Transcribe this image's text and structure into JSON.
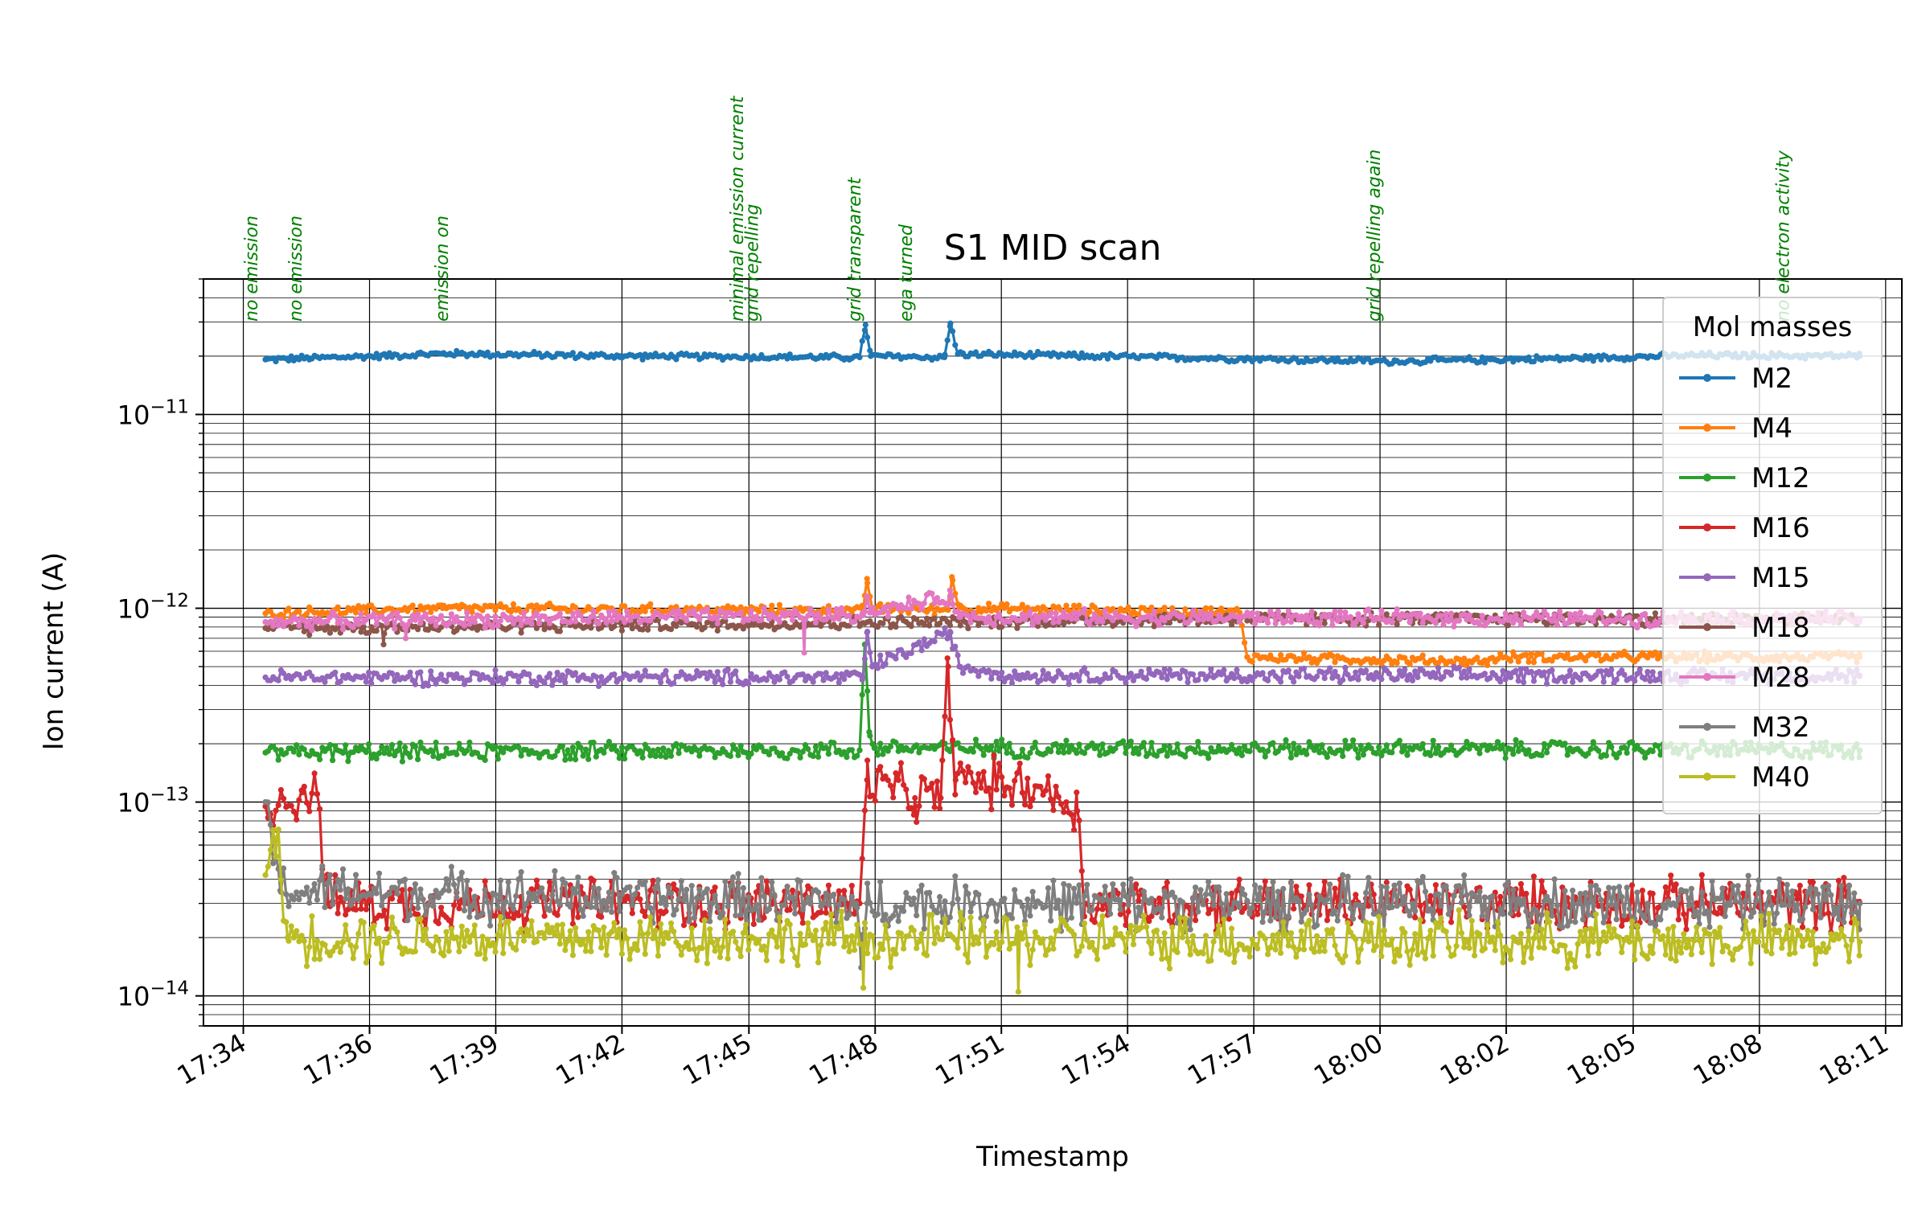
{
  "chart_data": {
    "type": "line",
    "title": "S1 MID scan",
    "xlabel": "Timestamp",
    "ylabel": "Ion current (A)",
    "yscale": "log",
    "ylim": [
      7e-15,
      5e-11
    ],
    "xlim": [
      "17:33:06",
      "18:11:27"
    ],
    "grid": "on (major and minor)",
    "legend": {
      "title": "Mol masses",
      "placement": "right (upper)"
    },
    "x_ticks": [
      {
        "t": "17:34:00",
        "label": "17:34"
      },
      {
        "t": "17:36:51",
        "label": "17:36"
      },
      {
        "t": "17:39:42",
        "label": "17:39"
      },
      {
        "t": "17:42:33",
        "label": "17:42"
      },
      {
        "t": "17:45:25",
        "label": "17:45"
      },
      {
        "t": "17:48:16",
        "label": "17:48"
      },
      {
        "t": "17:51:07",
        "label": "17:51"
      },
      {
        "t": "17:53:58",
        "label": "17:54"
      },
      {
        "t": "17:56:49",
        "label": "17:57"
      },
      {
        "t": "17:59:40",
        "label": "18:00"
      },
      {
        "t": "18:02:31",
        "label": "18:02"
      },
      {
        "t": "18:05:23",
        "label": "18:05"
      },
      {
        "t": "18:08:14",
        "label": "18:08"
      },
      {
        "t": "18:11:05",
        "label": "18:11"
      }
    ],
    "y_ticks": [
      {
        "value": 1e-14,
        "label_base": "10",
        "label_exp": "−14"
      },
      {
        "value": 1e-13,
        "label_base": "10",
        "label_exp": "−13"
      },
      {
        "value": 1e-12,
        "label_base": "10",
        "label_exp": "−12"
      },
      {
        "value": 1e-11,
        "label_base": "10",
        "label_exp": "−11"
      }
    ],
    "annotations": [
      {
        "t": "17:34:19",
        "text": "no emission"
      },
      {
        "t": "17:35:19",
        "text": "no emission"
      },
      {
        "t": "17:38:37",
        "text": "emission on"
      },
      {
        "t": "17:45:17",
        "text": "minimal emission current"
      },
      {
        "t": "17:45:37",
        "text": "grid repelling"
      },
      {
        "t": "17:47:56",
        "text": "grid transparent"
      },
      {
        "t": "17:49:06",
        "text": "ega turned"
      },
      {
        "t": "17:59:40",
        "text": "grid repelling again"
      },
      {
        "t": "18:08:54",
        "text": "no electron activity"
      }
    ],
    "series": [
      {
        "name": "M2",
        "color": "#1f77b4",
        "base": 2e-11,
        "noise": 0.012,
        "points": [
          [
            "17:34:30",
            1.92e-11
          ],
          [
            "17:38:40",
            2.06e-11
          ],
          [
            "17:42:30",
            2e-11
          ],
          [
            "17:47:55",
            1.97e-11
          ],
          [
            "17:48:03",
            2.9e-11
          ],
          [
            "17:48:10",
            2e-11
          ],
          [
            "17:49:50",
            1.97e-11
          ],
          [
            "17:49:58",
            2.95e-11
          ],
          [
            "17:50:08",
            2.05e-11
          ],
          [
            "17:56:00",
            1.95e-11
          ],
          [
            "18:00:00",
            1.88e-11
          ],
          [
            "18:04:00",
            1.95e-11
          ],
          [
            "18:07:00",
            2.02e-11
          ],
          [
            "18:10:30",
            2e-11
          ]
        ],
        "features": []
      },
      {
        "name": "M4",
        "color": "#ff7f0e",
        "base": 9.8e-13,
        "noise": 0.02,
        "points": [
          [
            "17:34:30",
            9.4e-13
          ],
          [
            "17:38:30",
            1e-12
          ],
          [
            "17:48:00",
            9.7e-13
          ],
          [
            "17:48:05",
            1.42e-12
          ],
          [
            "17:48:12",
            1e-12
          ],
          [
            "17:49:55",
            9.8e-13
          ],
          [
            "17:50:00",
            1.45e-12
          ],
          [
            "17:50:10",
            1e-12
          ],
          [
            "17:56:30",
            9.5e-13
          ],
          [
            "17:56:40",
            5.6e-13
          ],
          [
            "18:02:00",
            5.3e-13
          ],
          [
            "18:02:30",
            5.6e-13
          ],
          [
            "18:10:30",
            5.6e-13
          ]
        ],
        "features": []
      },
      {
        "name": "M12",
        "color": "#2ca02c",
        "base": 1.85e-13,
        "noise": 0.035,
        "points": [
          [
            "17:34:30",
            1.8e-13
          ],
          [
            "17:47:55",
            1.85e-13
          ],
          [
            "17:48:02",
            6.5e-13
          ],
          [
            "17:48:08",
            2.3e-13
          ],
          [
            "17:48:15",
            1.9e-13
          ],
          [
            "18:10:30",
            1.85e-13
          ]
        ],
        "features": []
      },
      {
        "name": "M16",
        "color": "#d62728",
        "base": 3e-14,
        "noise": 0.1,
        "points": [
          [
            "17:34:30",
            9.5e-14
          ],
          [
            "17:35:20",
            1.12e-13
          ],
          [
            "17:35:40",
            1.1e-13
          ],
          [
            "17:35:55",
            3e-14
          ],
          [
            "17:47:55",
            3e-14
          ],
          [
            "17:48:05",
            1.3e-13
          ],
          [
            "17:49:10",
            1.05e-13
          ],
          [
            "17:49:45",
            1.05e-13
          ],
          [
            "17:49:55",
            5e-13
          ],
          [
            "17:50:05",
            1.3e-13
          ],
          [
            "17:52:00",
            1.2e-13
          ],
          [
            "17:52:50",
            9e-14
          ],
          [
            "17:53:00",
            3e-14
          ],
          [
            "18:10:30",
            3e-14
          ]
        ],
        "features": []
      },
      {
        "name": "M15",
        "color": "#9467bd",
        "base": 4.5e-13,
        "noise": 0.03,
        "points": [
          [
            "17:34:30",
            4.4e-13
          ],
          [
            "17:48:00",
            4.4e-13
          ],
          [
            "17:48:05",
            7.5e-13
          ],
          [
            "17:48:12",
            5e-13
          ],
          [
            "17:49:58",
            7.5e-13
          ],
          [
            "17:50:10",
            5e-13
          ],
          [
            "17:51:30",
            4.5e-13
          ],
          [
            "18:10:30",
            4.5e-13
          ]
        ],
        "features": []
      },
      {
        "name": "M18",
        "color": "#8c564b",
        "base": 8.2e-13,
        "noise": 0.025,
        "points": [
          [
            "17:34:30",
            7.9e-13
          ],
          [
            "17:48:00",
            8.4e-13
          ],
          [
            "17:56:30",
            8.8e-13
          ],
          [
            "18:10:30",
            8.8e-13
          ]
        ],
        "features": [
          [
            "17:37:10",
            6.5e-13
          ]
        ]
      },
      {
        "name": "M28",
        "color": "#e377c2",
        "base": 8.8e-13,
        "noise": 0.03,
        "points": [
          [
            "17:34:30",
            8.5e-13
          ],
          [
            "17:48:00",
            9.2e-13
          ],
          [
            "17:48:05",
            1.15e-12
          ],
          [
            "17:48:12",
            9.5e-13
          ],
          [
            "17:50:00",
            1.15e-12
          ],
          [
            "17:50:10",
            9e-13
          ],
          [
            "18:10:30",
            8.8e-13
          ]
        ],
        "features": [
          [
            "17:46:40",
            5.9e-13
          ],
          [
            "17:37:40",
            7e-13
          ]
        ]
      },
      {
        "name": "M32",
        "color": "#7f7f7f",
        "base": 3e-14,
        "noise": 0.1,
        "points": [
          [
            "17:34:30",
            1e-13
          ],
          [
            "17:34:50",
            3.5e-14
          ],
          [
            "17:47:50",
            3e-14
          ],
          [
            "17:47:57",
            1.4e-14
          ],
          [
            "17:48:05",
            3e-14
          ],
          [
            "18:10:30",
            3e-14
          ]
        ],
        "features": []
      },
      {
        "name": "M40",
        "color": "#bcbd22",
        "base": 1.9e-14,
        "noise": 0.1,
        "points": [
          [
            "17:34:30",
            4.2e-14
          ],
          [
            "17:34:45",
            6.5e-14
          ],
          [
            "17:35:00",
            2e-14
          ],
          [
            "18:10:30",
            1.9e-14
          ]
        ],
        "features": [
          [
            "17:48:00",
            1.1e-14
          ],
          [
            "17:51:30",
            1.05e-14
          ]
        ]
      }
    ]
  }
}
